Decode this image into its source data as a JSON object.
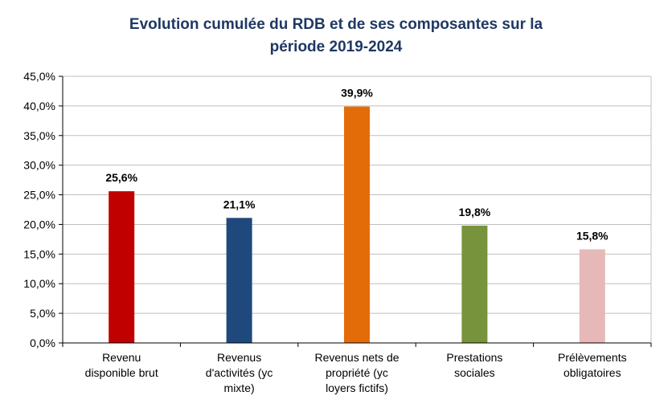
{
  "chart_data": {
    "type": "bar",
    "title_lines": [
      "Evolution cumulée du RDB et de ses composantes sur la",
      "période 2019-2024"
    ],
    "categories": [
      [
        "Revenu",
        "disponible brut"
      ],
      [
        "Revenus",
        "d'activités (yc",
        "mixte)"
      ],
      [
        "Revenus nets de",
        "propriété (yc",
        "loyers fictifs)"
      ],
      [
        "Prestations",
        "sociales"
      ],
      [
        "Prélèvements",
        "obligatoires"
      ]
    ],
    "values": [
      25.6,
      21.1,
      39.9,
      19.8,
      15.8
    ],
    "data_labels": [
      "25,6%",
      "21,1%",
      "39,9%",
      "19,8%",
      "15,8%"
    ],
    "colors": [
      "#c00000",
      "#1f497d",
      "#e36c09",
      "#77933c",
      "#e6b9b8"
    ],
    "ylim": [
      0,
      45
    ],
    "ytick_labels": [
      "0,0%",
      "5,0%",
      "10,0%",
      "15,0%",
      "20,0%",
      "25,0%",
      "30,0%",
      "35,0%",
      "40,0%",
      "45,0%"
    ],
    "grid": true,
    "legend": "none"
  }
}
